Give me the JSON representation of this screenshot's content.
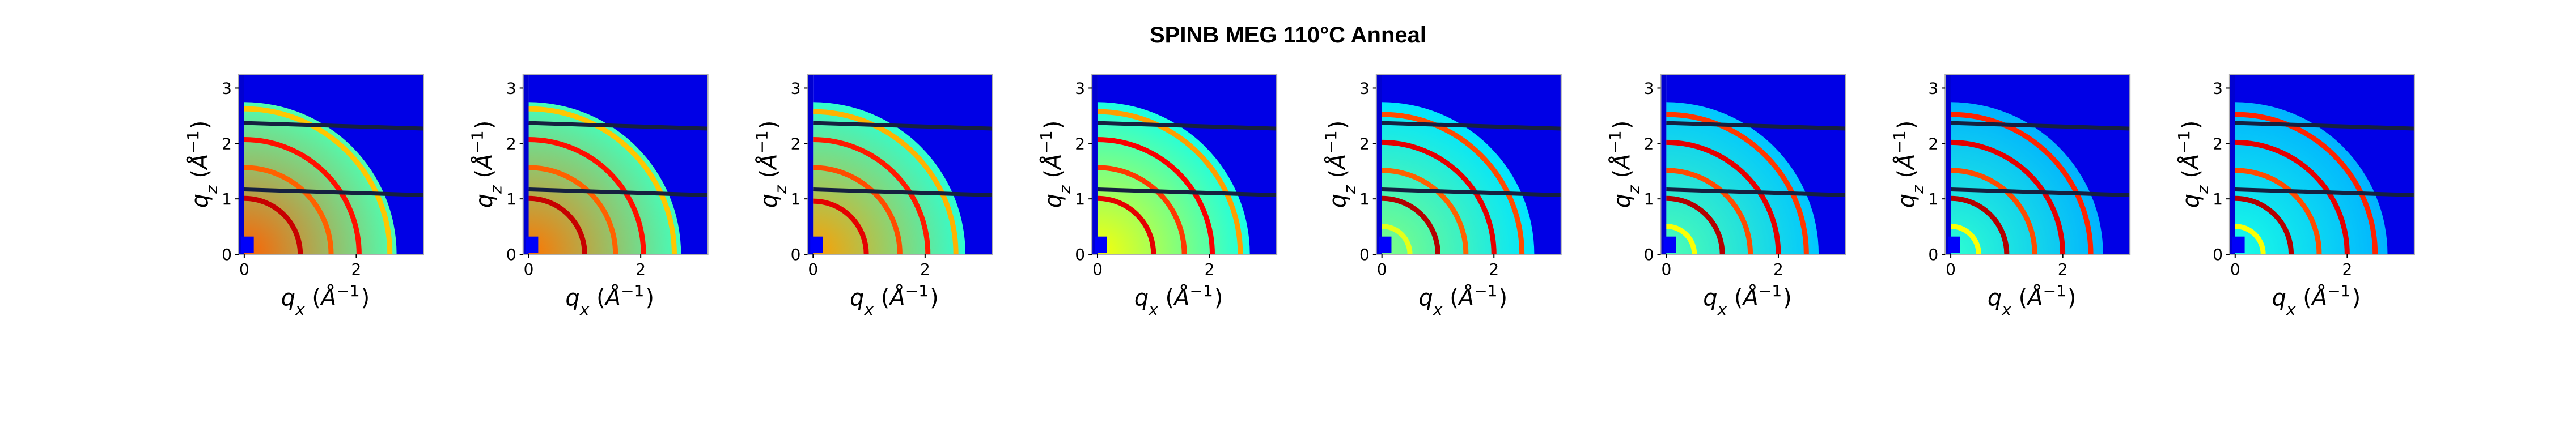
{
  "figure": {
    "title": "SPINB MEG 110°C Anneal"
  },
  "chart_data": {
    "type": "heatmap",
    "title": "SPINB MEG 110°C Anneal",
    "colormap": "jet",
    "panel_count": 8,
    "xlabel": "q_x (Å^-1)",
    "ylabel": "q_z (Å^-1)",
    "xlim": [
      -0.1,
      3.2
    ],
    "ylim": [
      0,
      3.25
    ],
    "xticks": [
      "0",
      "2"
    ],
    "yticks": [
      "0",
      "1",
      "2",
      "3"
    ],
    "detector_gaps_qz": [
      2.35,
      1.15
    ],
    "panels": [
      {
        "index": 1,
        "background": 0.78,
        "outer_background": 0.45,
        "high_q_cutoff": 2.72,
        "rings": [
          {
            "q": 1.0,
            "intensity": 0.93
          },
          {
            "q": 1.55,
            "intensity": 0.78
          },
          {
            "q": 2.05,
            "intensity": 0.86
          },
          {
            "q": 2.6,
            "intensity": 0.68
          }
        ]
      },
      {
        "index": 2,
        "background": 0.76,
        "outer_background": 0.44,
        "high_q_cutoff": 2.72,
        "rings": [
          {
            "q": 1.0,
            "intensity": 0.93
          },
          {
            "q": 1.55,
            "intensity": 0.78
          },
          {
            "q": 2.05,
            "intensity": 0.86
          },
          {
            "q": 2.6,
            "intensity": 0.68
          }
        ]
      },
      {
        "index": 3,
        "background": 0.72,
        "outer_background": 0.42,
        "high_q_cutoff": 2.72,
        "rings": [
          {
            "q": 0.95,
            "intensity": 0.9
          },
          {
            "q": 1.55,
            "intensity": 0.8
          },
          {
            "q": 2.05,
            "intensity": 0.85
          },
          {
            "q": 2.55,
            "intensity": 0.7
          }
        ]
      },
      {
        "index": 4,
        "background": 0.62,
        "outer_background": 0.4,
        "high_q_cutoff": 2.72,
        "rings": [
          {
            "q": 1.0,
            "intensity": 0.9
          },
          {
            "q": 1.55,
            "intensity": 0.82
          },
          {
            "q": 2.05,
            "intensity": 0.88
          },
          {
            "q": 2.55,
            "intensity": 0.72
          }
        ]
      },
      {
        "index": 5,
        "background": 0.5,
        "outer_background": 0.35,
        "high_q_cutoff": 2.72,
        "rings": [
          {
            "q": 0.5,
            "intensity": 0.6
          },
          {
            "q": 1.0,
            "intensity": 0.95
          },
          {
            "q": 1.5,
            "intensity": 0.78
          },
          {
            "q": 2.0,
            "intensity": 0.9
          },
          {
            "q": 2.5,
            "intensity": 0.8
          }
        ]
      },
      {
        "index": 6,
        "background": 0.45,
        "outer_background": 0.32,
        "high_q_cutoff": 2.72,
        "rings": [
          {
            "q": 0.5,
            "intensity": 0.62
          },
          {
            "q": 1.0,
            "intensity": 0.95
          },
          {
            "q": 1.5,
            "intensity": 0.8
          },
          {
            "q": 2.0,
            "intensity": 0.9
          },
          {
            "q": 2.5,
            "intensity": 0.82
          }
        ]
      },
      {
        "index": 7,
        "background": 0.42,
        "outer_background": 0.3,
        "high_q_cutoff": 2.72,
        "rings": [
          {
            "q": 0.5,
            "intensity": 0.62
          },
          {
            "q": 1.0,
            "intensity": 0.95
          },
          {
            "q": 1.5,
            "intensity": 0.8
          },
          {
            "q": 2.0,
            "intensity": 0.9
          },
          {
            "q": 2.5,
            "intensity": 0.84
          }
        ]
      },
      {
        "index": 8,
        "background": 0.4,
        "outer_background": 0.3,
        "high_q_cutoff": 2.72,
        "rings": [
          {
            "q": 0.5,
            "intensity": 0.62
          },
          {
            "q": 1.0,
            "intensity": 0.95
          },
          {
            "q": 1.5,
            "intensity": 0.8
          },
          {
            "q": 2.0,
            "intensity": 0.9
          },
          {
            "q": 2.5,
            "intensity": 0.84
          }
        ]
      }
    ]
  }
}
